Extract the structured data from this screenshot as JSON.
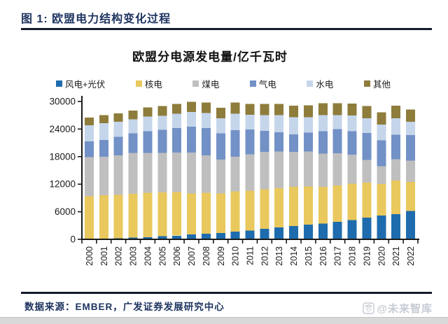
{
  "figure": {
    "header": "图 1: 欧盟电力结构变化过程",
    "source": "数据来源：EMBER，广发证券发展研究中心",
    "watermark": "@未来智库",
    "accent_color": "#1E3460"
  },
  "chart_data": {
    "type": "bar",
    "stacked": true,
    "title": "欧盟分电源发电量/亿千瓦时",
    "unit": "亿千瓦时",
    "grid": false,
    "legend_position": "top",
    "ylim": [
      0,
      30000
    ],
    "y_ticks": [
      0,
      6000,
      12000,
      18000,
      24000,
      30000
    ],
    "categories": [
      "2000",
      "2001",
      "2002",
      "2003",
      "2004",
      "2005",
      "2006",
      "2007",
      "2008",
      "2009",
      "2010",
      "2011",
      "2012",
      "2013",
      "2014",
      "2015",
      "2016",
      "2017",
      "2018",
      "2019",
      "2020",
      "2021",
      "2022"
    ],
    "series": [
      {
        "name": "风电+光伏",
        "color": "#1E6CAE",
        "values": [
          100,
          150,
          250,
          350,
          450,
          650,
          800,
          1050,
          1200,
          1400,
          1700,
          1900,
          2300,
          2600,
          2900,
          3200,
          3400,
          3800,
          4200,
          4700,
          5200,
          5500,
          6200
        ]
      },
      {
        "name": "核电",
        "color": "#E9C85D",
        "values": [
          9290,
          9440,
          9450,
          9550,
          9650,
          9550,
          9500,
          8900,
          8900,
          8550,
          8750,
          8700,
          8600,
          8500,
          8550,
          8300,
          8050,
          7900,
          7900,
          7650,
          6850,
          7300,
          6300
        ]
      },
      {
        "name": "煤电",
        "color": "#BFBFBF",
        "values": [
          8500,
          8400,
          8600,
          8900,
          8700,
          8600,
          8600,
          8900,
          8200,
          7400,
          7500,
          7900,
          8100,
          8000,
          7600,
          7600,
          7200,
          7000,
          6300,
          4900,
          3900,
          4600,
          4600
        ]
      },
      {
        "name": "气电",
        "color": "#7291C6",
        "values": [
          3400,
          3600,
          4000,
          4300,
          4700,
          5000,
          5300,
          5700,
          5900,
          5700,
          5800,
          5400,
          4600,
          4200,
          3800,
          4100,
          4900,
          5300,
          5100,
          5900,
          5600,
          5400,
          5600
        ]
      },
      {
        "name": "水电",
        "color": "#C5D6EB",
        "values": [
          3500,
          3700,
          3300,
          3050,
          3200,
          3100,
          3150,
          3150,
          3300,
          3300,
          3600,
          3200,
          3400,
          3700,
          3700,
          3400,
          3500,
          3000,
          3450,
          3200,
          3450,
          3550,
          2900
        ]
      },
      {
        "name": "其他",
        "color": "#8E7C3B",
        "values": [
          1700,
          1750,
          1800,
          1900,
          2000,
          2100,
          2150,
          2200,
          2250,
          2300,
          2400,
          2400,
          2450,
          2500,
          2500,
          2550,
          2550,
          2600,
          2600,
          2650,
          2650,
          2700,
          2650
        ]
      }
    ]
  }
}
